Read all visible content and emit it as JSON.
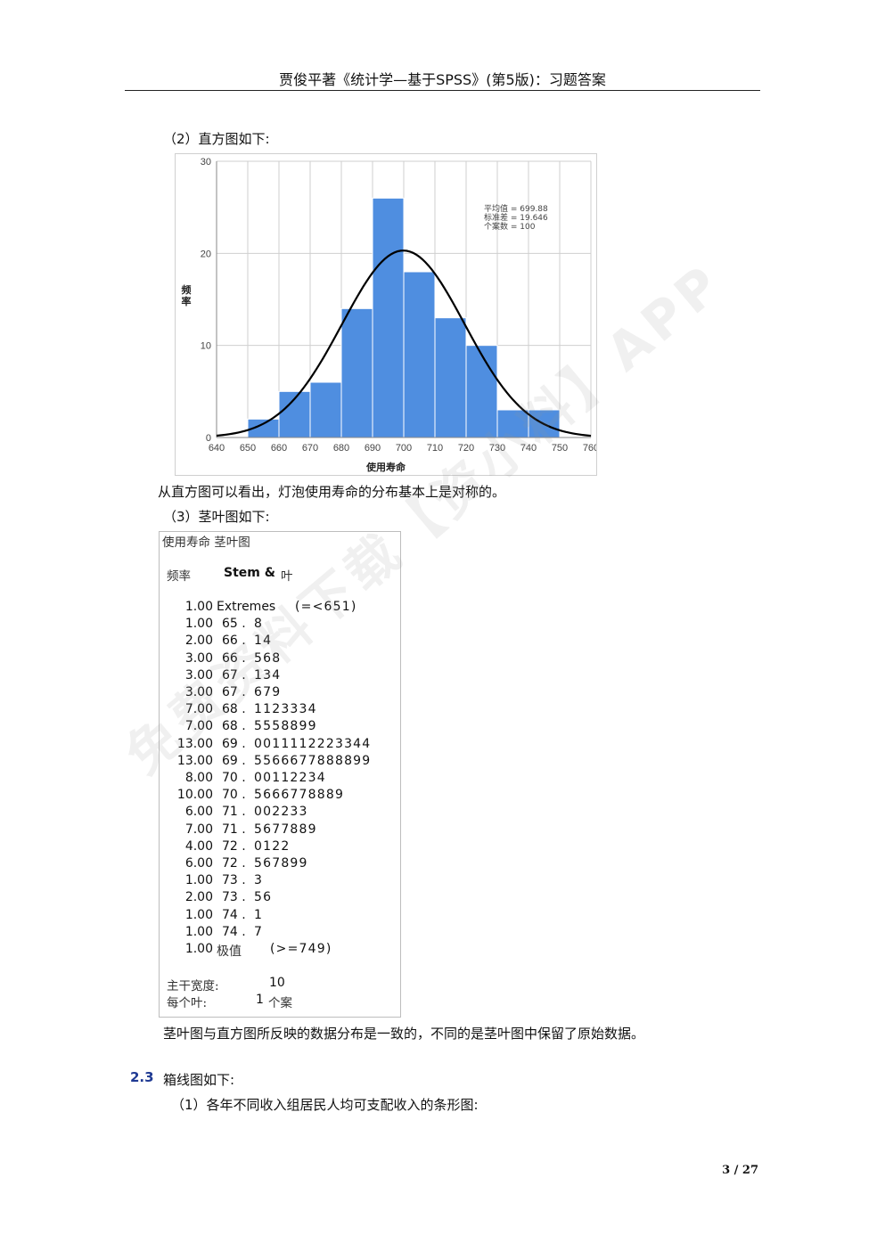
{
  "header": {
    "title": "贾俊平著《统计学—基于SPSS》(第5版)：习题答案"
  },
  "sec2": {
    "histogram_caption": "（2）直方图如下:",
    "histogram_comment": "从直方图可以看出，灯泡使用寿命的分布基本上是对称的。"
  },
  "chart_data": {
    "type": "bar",
    "xlabel": "使用寿命",
    "ylabel": "频率",
    "x_ticks": [
      "640",
      "650",
      "660",
      "670",
      "680",
      "690",
      "700",
      "710",
      "720",
      "730",
      "740",
      "750",
      "760"
    ],
    "y_ticks": [
      "0",
      "10",
      "20",
      "30"
    ],
    "xlim": [
      640,
      760
    ],
    "ylim": [
      0,
      30
    ],
    "bins": [
      {
        "from": 650,
        "to": 660,
        "count": 2
      },
      {
        "from": 660,
        "to": 670,
        "count": 5
      },
      {
        "from": 670,
        "to": 680,
        "count": 6
      },
      {
        "from": 680,
        "to": 690,
        "count": 14
      },
      {
        "from": 690,
        "to": 700,
        "count": 26
      },
      {
        "from": 700,
        "to": 710,
        "count": 18
      },
      {
        "from": 710,
        "to": 720,
        "count": 13
      },
      {
        "from": 720,
        "to": 730,
        "count": 10
      },
      {
        "from": 730,
        "to": 740,
        "count": 3
      },
      {
        "from": 740,
        "to": 750,
        "count": 3
      }
    ],
    "normal_curve": {
      "mean": 699.88,
      "std": 19.646,
      "n": 100,
      "binwidth": 10
    },
    "legend": [
      "平均值 = 699.88",
      "标准差 = 19.646",
      "个案数 = 100"
    ],
    "bar_color": "#4f8ee0",
    "grid": true
  },
  "sec3": {
    "caption": "（3）茎叶图如下:",
    "title": "使用寿命 茎叶图",
    "col_freq": "频率",
    "col_stem": "Stem &",
    "col_leaf": "叶",
    "rows": [
      {
        "freq": "1.00",
        "stem": "Extremes",
        "leaf": "(=<651)"
      },
      {
        "freq": "1.00",
        "stem": "65 .",
        "leaf": "8"
      },
      {
        "freq": "2.00",
        "stem": "66 .",
        "leaf": "14"
      },
      {
        "freq": "3.00",
        "stem": "66 .",
        "leaf": "568"
      },
      {
        "freq": "3.00",
        "stem": "67 .",
        "leaf": "134"
      },
      {
        "freq": "3.00",
        "stem": "67 .",
        "leaf": "679"
      },
      {
        "freq": "7.00",
        "stem": "68 .",
        "leaf": "1123334"
      },
      {
        "freq": "7.00",
        "stem": "68 .",
        "leaf": "5558899"
      },
      {
        "freq": "13.00",
        "stem": "69 .",
        "leaf": "0011112223344"
      },
      {
        "freq": "13.00",
        "stem": "69 .",
        "leaf": "5566677888899"
      },
      {
        "freq": "8.00",
        "stem": "70 .",
        "leaf": "00112234"
      },
      {
        "freq": "10.00",
        "stem": "70 .",
        "leaf": "5666778889"
      },
      {
        "freq": "6.00",
        "stem": "71 .",
        "leaf": "002233"
      },
      {
        "freq": "7.00",
        "stem": "71 .",
        "leaf": "5677889"
      },
      {
        "freq": "4.00",
        "stem": "72 .",
        "leaf": "0122"
      },
      {
        "freq": "6.00",
        "stem": "72 .",
        "leaf": "567899"
      },
      {
        "freq": "1.00",
        "stem": "73 .",
        "leaf": "3"
      },
      {
        "freq": "2.00",
        "stem": "73 .",
        "leaf": "56"
      },
      {
        "freq": "1.00",
        "stem": "74 .",
        "leaf": "1"
      },
      {
        "freq": "1.00",
        "stem": "74 .",
        "leaf": "7"
      },
      {
        "freq": "1.00",
        "stem": "极值",
        "leaf": "(>=749)"
      }
    ],
    "stem_width_label": "主干宽度:",
    "stem_width_value": "10",
    "each_leaf_label": "每个叶:",
    "each_leaf_value": "1",
    "each_leaf_unit": "个案",
    "comment": "茎叶图与直方图所反映的数据分布是一致的，不同的是茎叶图中保留了原始数据。"
  },
  "sec23": {
    "number": "2.3",
    "title": "箱线图如下:",
    "item1": "（1）各年不同收入组居民人均可支配收入的条形图:"
  },
  "footer": {
    "page": "3 / 27"
  },
  "watermark": "免费资料下载【资小料】APP"
}
